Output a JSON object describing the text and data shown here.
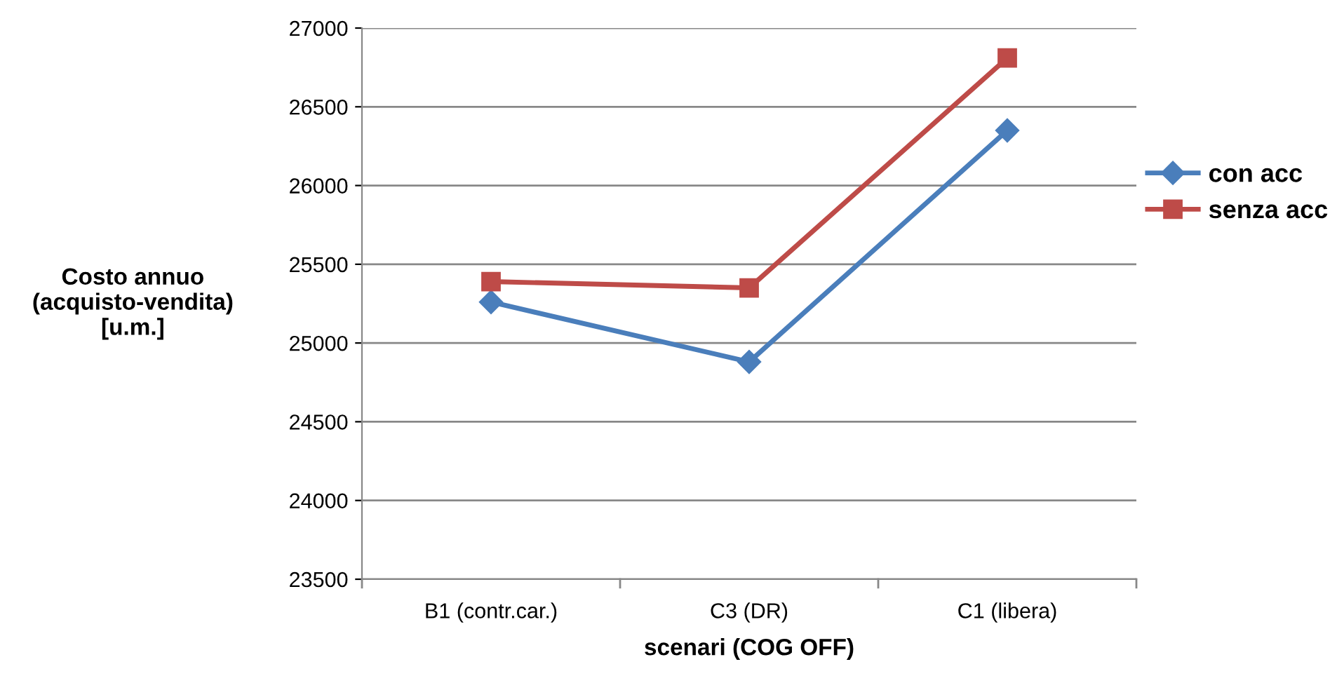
{
  "chart_data": {
    "type": "line",
    "xlabel": "scenari (COG OFF)",
    "ylabel": "Costo annuo\n(acquisto-vendita)\n[u.m.]",
    "categories": [
      "B1 (contr.car.)",
      "C3 (DR)",
      "C1 (libera)"
    ],
    "series": [
      {
        "name": "con acc",
        "color": "#4a7ebb",
        "marker": "diamond",
        "values": [
          25260,
          24880,
          26350
        ]
      },
      {
        "name": "senza acc",
        "color": "#be4b48",
        "marker": "square",
        "values": [
          25390,
          25350,
          26810
        ]
      }
    ],
    "ylim": [
      23500,
      27000
    ],
    "yticks": [
      23500,
      24000,
      24500,
      25000,
      25500,
      26000,
      26500,
      27000
    ],
    "grid": "y",
    "legend": "right",
    "line_style": "solid"
  }
}
